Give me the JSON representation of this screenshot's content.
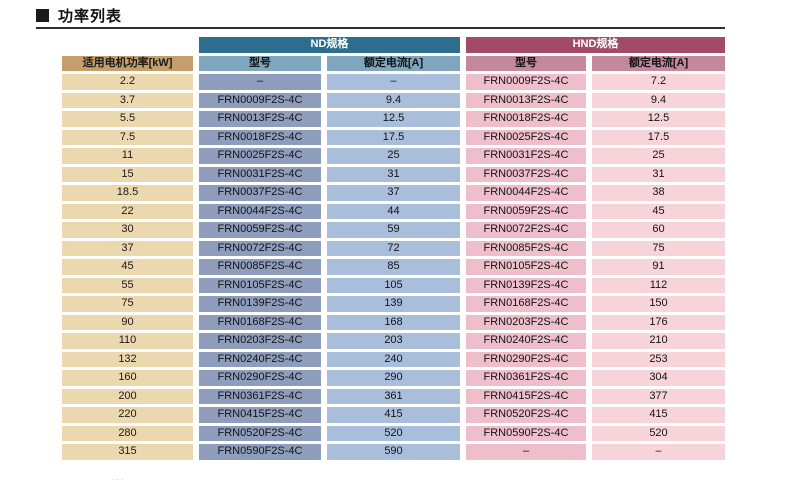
{
  "title": {
    "text": "功率列表"
  },
  "table": {
    "group_headers": [
      "ND规格",
      "HND规格"
    ],
    "columns": [
      "适用电机功率[kW]",
      "型号",
      "额定电流[A]",
      "型号",
      "额定电流[A]"
    ],
    "rows": [
      [
        "2.2",
        "–",
        "–",
        "FRN0009F2S-4C",
        "7.2"
      ],
      [
        "3.7",
        "FRN0009F2S-4C",
        "9.4",
        "FRN0013F2S-4C",
        "9.4"
      ],
      [
        "5.5",
        "FRN0013F2S-4C",
        "12.5",
        "FRN0018F2S-4C",
        "12.5"
      ],
      [
        "7.5",
        "FRN0018F2S-4C",
        "17.5",
        "FRN0025F2S-4C",
        "17.5"
      ],
      [
        "11",
        "FRN0025F2S-4C",
        "25",
        "FRN0031F2S-4C",
        "25"
      ],
      [
        "15",
        "FRN0031F2S-4C",
        "31",
        "FRN0037F2S-4C",
        "31"
      ],
      [
        "18.5",
        "FRN0037F2S-4C",
        "37",
        "FRN0044F2S-4C",
        "38"
      ],
      [
        "22",
        "FRN0044F2S-4C",
        "44",
        "FRN0059F2S-4C",
        "45"
      ],
      [
        "30",
        "FRN0059F2S-4C",
        "59",
        "FRN0072F2S-4C",
        "60"
      ],
      [
        "37",
        "FRN0072F2S-4C",
        "72",
        "FRN0085F2S-4C",
        "75"
      ],
      [
        "45",
        "FRN0085F2S-4C",
        "85",
        "FRN0105F2S-4C",
        "91"
      ],
      [
        "55",
        "FRN0105F2S-4C",
        "105",
        "FRN0139F2S-4C",
        "112"
      ],
      [
        "75",
        "FRN0139F2S-4C",
        "139",
        "FRN0168F2S-4C",
        "150"
      ],
      [
        "90",
        "FRN0168F2S-4C",
        "168",
        "FRN0203F2S-4C",
        "176"
      ],
      [
        "110",
        "FRN0203F2S-4C",
        "203",
        "FRN0240F2S-4C",
        "210"
      ],
      [
        "132",
        "FRN0240F2S-4C",
        "240",
        "FRN0290F2S-4C",
        "253"
      ],
      [
        "160",
        "FRN0290F2S-4C",
        "290",
        "FRN0361F2S-4C",
        "304"
      ],
      [
        "200",
        "FRN0361F2S-4C",
        "361",
        "FRN0415F2S-4C",
        "377"
      ],
      [
        "220",
        "FRN0415F2S-4C",
        "415",
        "FRN0520F2S-4C",
        "415"
      ],
      [
        "280",
        "FRN0520F2S-4C",
        "520",
        "FRN0590F2S-4C",
        "520"
      ],
      [
        "315",
        "FRN0590F2S-4C",
        "590",
        "–",
        "–"
      ]
    ]
  },
  "colors": {
    "nd_header": "#2d6d8e",
    "nd_subheader": "#7fa6bc",
    "nd_model_cell": "#8f9dbd",
    "nd_current_cell": "#a9bedb",
    "hnd_header": "#a34a68",
    "hnd_subheader": "#c4889d",
    "hnd_model_cell": "#eebfca",
    "hnd_current_cell": "#f6d4da",
    "power_header": "#c49e6b",
    "power_cell": "#ecd8ae"
  },
  "footer_fragment": "..."
}
